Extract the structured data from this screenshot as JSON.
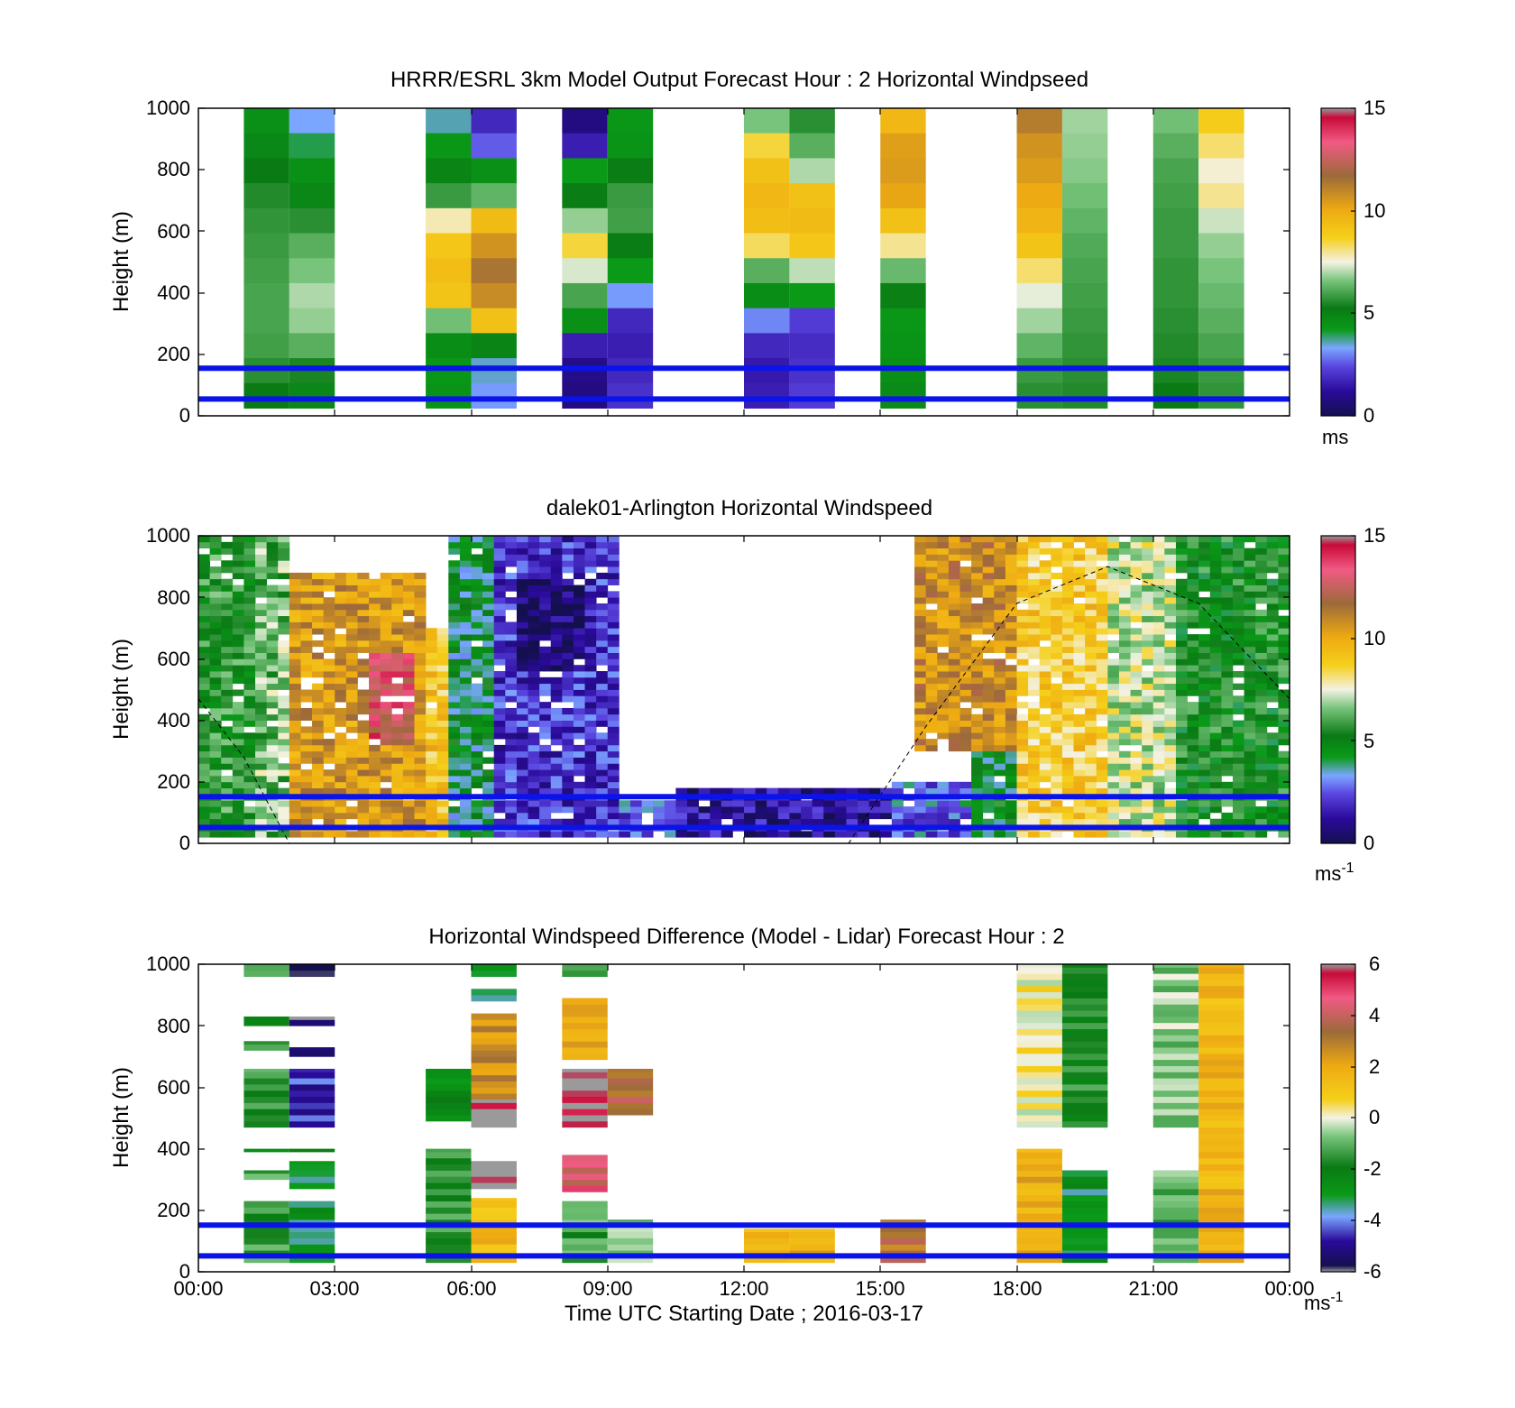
{
  "figure": {
    "xlabel": "Time UTC  Starting Date ; 2016-03-17",
    "x_ticks": [
      "00:00",
      "03:00",
      "06:00",
      "09:00",
      "12:00",
      "15:00",
      "18:00",
      "21:00",
      "00:00"
    ],
    "x_range_hours": [
      0,
      24
    ],
    "guide_lines_height_m": [
      50,
      150
    ],
    "guide_line_color": "#0a14e8"
  },
  "chart_data": [
    {
      "type": "heatmap",
      "title": "HRRR/ESRL 3km Model Output   Forecast Hour : 2 Horizontal Windpseed",
      "ylabel": "Height (m)",
      "ylim": [
        0,
        1000
      ],
      "y_ticks": [
        "0",
        "200",
        "400",
        "600",
        "800",
        "1000"
      ],
      "colorbar": {
        "range": [
          0,
          15
        ],
        "ticks": [
          "0",
          "5",
          "10",
          "15"
        ],
        "unit": "ms",
        "unit_sup": ""
      },
      "note_values_ms": "columns = hour start (1-h wide); heights listed top-down 1000→0 m",
      "columns": [
        {
          "t": 1,
          "speed_top_down": [
            4.5,
            4.8,
            5.2,
            5.5,
            5.7,
            5.8,
            5.9,
            6.0,
            6.0,
            5.9,
            5.6,
            5.2
          ]
        },
        {
          "t": 2,
          "speed_top_down": [
            3.3,
            4.0,
            4.5,
            4.8,
            5.6,
            6.2,
            6.6,
            7.0,
            6.8,
            6.2,
            5.4,
            4.8
          ]
        },
        {
          "t": 5,
          "speed_top_down": [
            3.6,
            4.3,
            4.9,
            5.8,
            7.8,
            9.0,
            9.3,
            9.1,
            6.5,
            4.6,
            4.3,
            4.4
          ]
        },
        {
          "t": 6,
          "speed_top_down": [
            1.8,
            2.6,
            4.5,
            6.3,
            9.4,
            10.6,
            11.4,
            10.8,
            9.2,
            4.9,
            3.5,
            3.2
          ]
        },
        {
          "t": 8,
          "speed_top_down": [
            0.8,
            1.6,
            4.2,
            5.1,
            6.8,
            8.5,
            7.3,
            6.0,
            4.5,
            1.6,
            0.9,
            0.8
          ]
        },
        {
          "t": 9,
          "speed_top_down": [
            4.3,
            4.4,
            5.1,
            5.8,
            5.9,
            5.1,
            4.2,
            3.2,
            1.8,
            1.6,
            1.8,
            2.0
          ]
        },
        {
          "t": 12,
          "speed_top_down": [
            6.6,
            8.5,
            9.2,
            9.5,
            9.3,
            8.3,
            6.2,
            4.6,
            3.0,
            1.8,
            1.5,
            1.6
          ]
        },
        {
          "t": 13,
          "speed_top_down": [
            5.6,
            6.2,
            7.0,
            9.2,
            9.4,
            9.0,
            7.1,
            4.2,
            2.2,
            1.9,
            2.0,
            2.2
          ]
        },
        {
          "t": 15,
          "speed_top_down": [
            9.5,
            10.3,
            10.4,
            10.1,
            9.2,
            8.0,
            6.4,
            5.0,
            4.3,
            4.4,
            4.5,
            4.7
          ]
        },
        {
          "t": 18,
          "speed_top_down": [
            11.2,
            10.6,
            10.4,
            10.0,
            9.6,
            9.1,
            8.2,
            7.4,
            6.9,
            6.3,
            5.8,
            5.6
          ]
        },
        {
          "t": 19,
          "speed_top_down": [
            6.9,
            6.8,
            6.7,
            6.5,
            6.3,
            6.1,
            6.0,
            5.9,
            5.8,
            5.7,
            5.6,
            5.5
          ]
        },
        {
          "t": 21,
          "speed_top_down": [
            6.5,
            6.2,
            6.0,
            5.9,
            5.8,
            5.8,
            5.7,
            5.7,
            5.6,
            5.5,
            5.4,
            5.2
          ]
        },
        {
          "t": 22,
          "speed_top_down": [
            8.8,
            8.2,
            7.6,
            8.0,
            7.2,
            6.8,
            6.6,
            6.4,
            6.2,
            6.0,
            5.8,
            5.7
          ]
        }
      ]
    },
    {
      "type": "heatmap",
      "title": "dalek01-Arlington  Horizontal Windspeed",
      "ylabel": "Height (m)",
      "ylim": [
        0,
        1000
      ],
      "y_ticks": [
        "0",
        "200",
        "400",
        "600",
        "800",
        "1000"
      ],
      "colorbar": {
        "range": [
          0,
          15
        ],
        "ticks": [
          "0",
          "5",
          "10",
          "15"
        ],
        "unit": "ms",
        "unit_sup": "-1"
      },
      "field_description": "approximate lidar wind speed (ms-1) vs time (h) and height (m)",
      "regimes": [
        {
          "t0": 0.0,
          "t1": 1.2,
          "speed": 5.5,
          "top_m": 1000
        },
        {
          "t0": 1.2,
          "t1": 2.0,
          "speed": 6.5,
          "top_m": 1000
        },
        {
          "t0": 2.0,
          "t1": 4.8,
          "speed": 10.5,
          "top_m": 880,
          "core_speed": 13.0,
          "core_t": [
            3.7,
            4.7
          ],
          "core_h": [
            320,
            620
          ]
        },
        {
          "t0": 4.8,
          "t1": 5.4,
          "speed": 9.0,
          "top_m": 700
        },
        {
          "t0": 5.4,
          "t1": 6.5,
          "speed": 4.3,
          "top_m": 1000
        },
        {
          "t0": 6.5,
          "t1": 9.1,
          "speed": 2.0,
          "top_m": 1000,
          "core_speed": 0.4,
          "core_t": [
            7.0,
            8.3
          ],
          "core_h": [
            560,
            860
          ]
        },
        {
          "t0": 9.1,
          "t1": 10.3,
          "speed": 2.5,
          "top_m": 130
        },
        {
          "t0": 10.3,
          "t1": 15.2,
          "speed": 1.2,
          "top_m": 170
        },
        {
          "t0": 15.2,
          "t1": 17.0,
          "speed": 2.8,
          "top_m": 200
        },
        {
          "t0": 15.7,
          "t1": 18.0,
          "speed": 10.8,
          "top_m": 1000,
          "bottom_m": 300
        },
        {
          "t0": 17.0,
          "t1": 18.2,
          "speed": 4.6,
          "top_m": 300
        },
        {
          "t0": 18.0,
          "t1": 20.0,
          "speed": 8.8,
          "top_m": 1000
        },
        {
          "t0": 20.0,
          "t1": 21.5,
          "speed": 7.3,
          "top_m": 1000
        },
        {
          "t0": 21.5,
          "t1": 24.0,
          "speed": 5.2,
          "top_m": 1000
        }
      ],
      "dashed_curve_points": [
        [
          0,
          470
        ],
        [
          1,
          280
        ],
        [
          2,
          0
        ],
        [
          14.3,
          0
        ],
        [
          16,
          380
        ],
        [
          18,
          780
        ],
        [
          20,
          900
        ],
        [
          22,
          780
        ],
        [
          24,
          470
        ]
      ]
    },
    {
      "type": "heatmap",
      "title": "Horizontal Windspeed Difference (Model - Lidar) Forecast Hour : 2",
      "ylabel": "Height (m)",
      "ylim": [
        0,
        1000
      ],
      "y_ticks": [
        "0",
        "200",
        "400",
        "600",
        "800",
        "1000"
      ],
      "colorbar": {
        "range": [
          -6,
          6
        ],
        "ticks": [
          "-6",
          "-4",
          "-2",
          "0",
          "2",
          "4",
          "6"
        ],
        "unit": "ms",
        "unit_sup": "-1"
      },
      "segments": [
        {
          "t": 1,
          "h0": 960,
          "h1": 1000,
          "diff": -1.0
        },
        {
          "t": 1,
          "h0": 800,
          "h1": 830,
          "diff": -1.8
        },
        {
          "t": 1,
          "h0": 720,
          "h1": 750,
          "diff": -1.8
        },
        {
          "t": 1,
          "h0": 470,
          "h1": 660,
          "diff": -1.5
        },
        {
          "t": 1,
          "h0": 390,
          "h1": 400,
          "diff": -1.8
        },
        {
          "t": 1,
          "h0": 300,
          "h1": 330,
          "diff": -1.3
        },
        {
          "t": 1,
          "h0": 30,
          "h1": 230,
          "diff": -1.4
        },
        {
          "t": 2,
          "h0": 960,
          "h1": 1000,
          "diff": -5.6
        },
        {
          "t": 2,
          "h0": 800,
          "h1": 830,
          "diff": -5.6
        },
        {
          "t": 2,
          "h0": 700,
          "h1": 730,
          "diff": -5.0
        },
        {
          "t": 2,
          "h0": 470,
          "h1": 660,
          "diff": -4.6
        },
        {
          "t": 2,
          "h0": 390,
          "h1": 400,
          "diff": -2.6
        },
        {
          "t": 2,
          "h0": 270,
          "h1": 360,
          "diff": -3.1
        },
        {
          "t": 2,
          "h0": 30,
          "h1": 230,
          "diff": -3.0
        },
        {
          "t": 5,
          "h0": 490,
          "h1": 660,
          "diff": -2.5
        },
        {
          "t": 5,
          "h0": 30,
          "h1": 400,
          "diff": -1.6
        },
        {
          "t": 6,
          "h0": 960,
          "h1": 1000,
          "diff": -3.0
        },
        {
          "t": 6,
          "h0": 880,
          "h1": 920,
          "diff": -3.0
        },
        {
          "t": 6,
          "h0": 560,
          "h1": 840,
          "diff": 2.6
        },
        {
          "t": 6,
          "h0": 470,
          "h1": 560,
          "diff": 6.0
        },
        {
          "t": 6,
          "h0": 270,
          "h1": 360,
          "diff": 6.0
        },
        {
          "t": 6,
          "h0": 30,
          "h1": 240,
          "diff": 1.5
        },
        {
          "t": 8,
          "h0": 960,
          "h1": 1000,
          "diff": -1.8
        },
        {
          "t": 8,
          "h0": 690,
          "h1": 890,
          "diff": 1.8
        },
        {
          "t": 8,
          "h0": 470,
          "h1": 660,
          "diff": 6.0
        },
        {
          "t": 8,
          "h0": 260,
          "h1": 380,
          "diff": 4.4
        },
        {
          "t": 8,
          "h0": 30,
          "h1": 230,
          "diff": -1.2
        },
        {
          "t": 9,
          "h0": 510,
          "h1": 660,
          "diff": 3.5
        },
        {
          "t": 9,
          "h0": 30,
          "h1": 170,
          "diff": -0.4
        },
        {
          "t": 12,
          "h0": 30,
          "h1": 140,
          "diff": 1.4
        },
        {
          "t": 13,
          "h0": 30,
          "h1": 140,
          "diff": 1.8
        },
        {
          "t": 15,
          "h0": 30,
          "h1": 170,
          "diff": 3.2
        },
        {
          "t": 18,
          "h0": 470,
          "h1": 1000,
          "diff": 0.2
        },
        {
          "t": 18,
          "h0": 30,
          "h1": 400,
          "diff": 1.8
        },
        {
          "t": 19,
          "h0": 470,
          "h1": 1000,
          "diff": -1.7
        },
        {
          "t": 19,
          "h0": 30,
          "h1": 330,
          "diff": -2.9
        },
        {
          "t": 21,
          "h0": 470,
          "h1": 1000,
          "diff": -0.6
        },
        {
          "t": 21,
          "h0": 30,
          "h1": 330,
          "diff": -1.1
        },
        {
          "t": 22,
          "h0": 30,
          "h1": 1000,
          "diff": 1.6
        }
      ]
    }
  ]
}
